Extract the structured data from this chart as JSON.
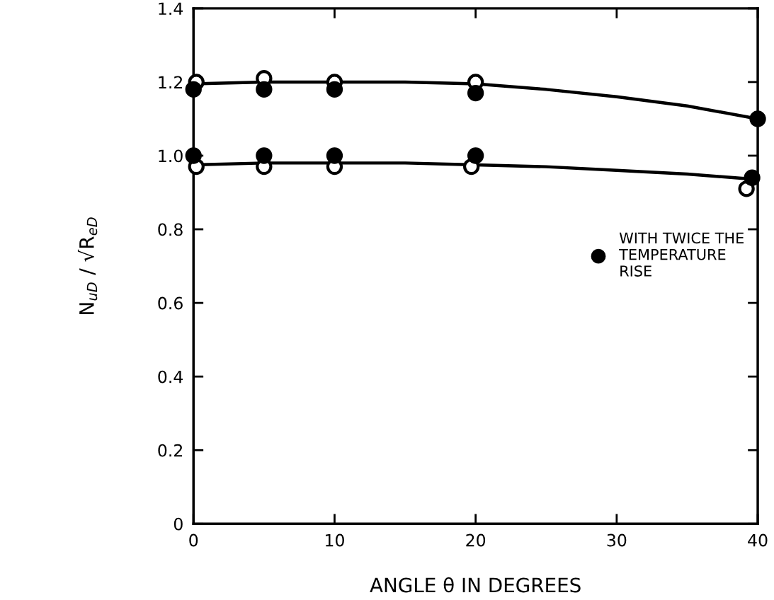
{
  "chart_data": {
    "type": "scatter",
    "xlabel": "ANGLE θ IN DEGREES",
    "ylabel": "N$_{uD}$ / √R$_{eD}$",
    "xlim": [
      0,
      40
    ],
    "ylim": [
      0,
      1.4
    ],
    "xticks": [
      0,
      10,
      20,
      30,
      40
    ],
    "yticks": [
      0,
      0.2,
      0.4,
      0.6,
      0.8,
      {
        "value": 1,
        "label": "1.0"
      },
      1.2,
      1.4
    ],
    "grid": false,
    "legend": "right",
    "series": [
      {
        "type": "line",
        "marker": "none",
        "color": "#000000",
        "x": [
          0,
          5,
          10,
          15,
          20,
          25,
          30,
          35,
          40
        ],
        "values": [
          1.195,
          1.2,
          1.2,
          1.2,
          1.195,
          1.18,
          1.16,
          1.135,
          1.1
        ]
      },
      {
        "type": "line",
        "marker": "none",
        "color": "#000000",
        "x": [
          0,
          5,
          10,
          15,
          20,
          25,
          30,
          35,
          40
        ],
        "values": [
          0.975,
          0.98,
          0.98,
          0.98,
          0.975,
          0.97,
          0.96,
          0.95,
          0.935
        ]
      },
      {
        "marker": "circle",
        "color": "#ffffff",
        "x": [
          0.2,
          5,
          10,
          20,
          0.2,
          5,
          10,
          19.7,
          39.2
        ],
        "values": [
          1.2,
          1.21,
          1.2,
          1.2,
          0.97,
          0.97,
          0.97,
          0.97,
          0.91
        ]
      },
      {
        "marker": "circle",
        "name": "WITH TWICE THE\nTEMPERATURE\nRISE",
        "color": "#000000",
        "x": [
          0,
          5,
          10,
          20,
          40,
          0,
          5,
          10,
          20,
          39.6
        ],
        "values": [
          1.18,
          1.18,
          1.18,
          1.17,
          1.1,
          1.0,
          1.0,
          1.0,
          1.0,
          0.94
        ]
      }
    ]
  }
}
